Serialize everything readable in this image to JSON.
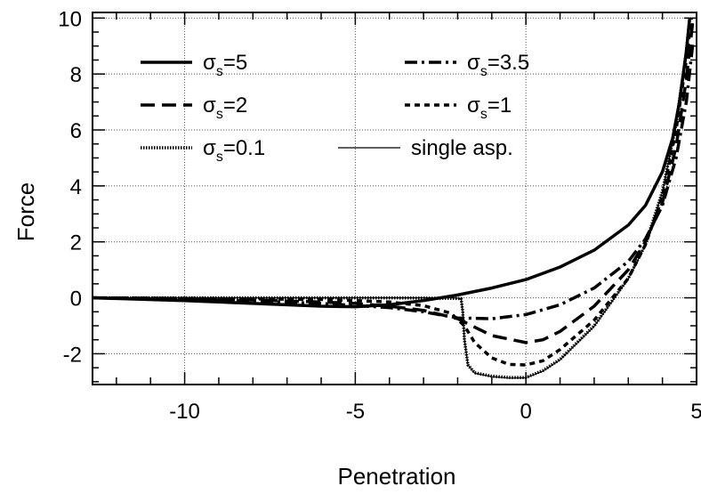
{
  "chart_data": {
    "type": "line",
    "xlabel": "Penetration",
    "ylabel": "Force",
    "xlim": [
      -12.7,
      5.0
    ],
    "ylim": [
      -3.1,
      10.2
    ],
    "grid": true,
    "legend_position": "top-left",
    "x_ticks": [
      -10,
      -5,
      0,
      5
    ],
    "x_tick_labels": [
      "-10",
      "-5",
      "0",
      "5"
    ],
    "y_ticks": [
      -2,
      0,
      2,
      4,
      6,
      8,
      10
    ],
    "y_tick_labels": [
      "-2",
      "0",
      "2",
      "4",
      "6",
      "8",
      "10"
    ],
    "series": [
      {
        "name": "σs=5",
        "symbol": "σ",
        "sub": "s",
        "value": "=5",
        "style": "solid-thick",
        "points": [
          [
            -12.7,
            0
          ],
          [
            -10,
            -0.1
          ],
          [
            -8,
            -0.2
          ],
          [
            -6,
            -0.3
          ],
          [
            -5,
            -0.32
          ],
          [
            -4,
            -0.25
          ],
          [
            -3,
            -0.1
          ],
          [
            -2,
            0.1
          ],
          [
            -1,
            0.35
          ],
          [
            0,
            0.65
          ],
          [
            1,
            1.1
          ],
          [
            2,
            1.7
          ],
          [
            3,
            2.6
          ],
          [
            3.5,
            3.3
          ],
          [
            4,
            4.5
          ],
          [
            4.3,
            5.7
          ],
          [
            4.5,
            7.0
          ],
          [
            4.7,
            8.8
          ],
          [
            4.8,
            10.0
          ]
        ]
      },
      {
        "name": "σs=3.5",
        "symbol": "σ",
        "sub": "s",
        "value": "=3.5",
        "style": "dashdot",
        "points": [
          [
            -12.7,
            0
          ],
          [
            -10,
            -0.05
          ],
          [
            -8,
            -0.12
          ],
          [
            -6,
            -0.2
          ],
          [
            -4,
            -0.35
          ],
          [
            -3,
            -0.5
          ],
          [
            -2,
            -0.72
          ],
          [
            -1,
            -0.75
          ],
          [
            0,
            -0.6
          ],
          [
            1,
            -0.25
          ],
          [
            2,
            0.35
          ],
          [
            3,
            1.3
          ],
          [
            3.5,
            2.1
          ],
          [
            4,
            3.3
          ],
          [
            4.4,
            5.0
          ],
          [
            4.7,
            7.0
          ],
          [
            4.9,
            9.2
          ]
        ]
      },
      {
        "name": "σs=2",
        "symbol": "σ",
        "sub": "s",
        "value": "=2",
        "style": "dashed-long",
        "points": [
          [
            -12.7,
            0
          ],
          [
            -10,
            -0.03
          ],
          [
            -8,
            -0.08
          ],
          [
            -6,
            -0.15
          ],
          [
            -5,
            -0.2
          ],
          [
            -4,
            -0.3
          ],
          [
            -3,
            -0.45
          ],
          [
            -2,
            -0.75
          ],
          [
            -1,
            -1.35
          ],
          [
            0,
            -1.6
          ],
          [
            0.5,
            -1.5
          ],
          [
            1,
            -1.2
          ],
          [
            2,
            -0.3
          ],
          [
            3,
            1.0
          ],
          [
            3.5,
            2.0
          ],
          [
            4,
            3.4
          ],
          [
            4.4,
            5.4
          ],
          [
            4.7,
            7.8
          ],
          [
            4.9,
            10.0
          ]
        ]
      },
      {
        "name": "σs=1",
        "symbol": "σ",
        "sub": "s",
        "value": "=1",
        "style": "dashed-short",
        "points": [
          [
            -12.7,
            0
          ],
          [
            -10,
            -0.02
          ],
          [
            -8,
            -0.04
          ],
          [
            -6,
            -0.06
          ],
          [
            -5,
            -0.1
          ],
          [
            -4,
            -0.15
          ],
          [
            -3,
            -0.28
          ],
          [
            -2.2,
            -0.55
          ],
          [
            -1.8,
            -1.0
          ],
          [
            -1.5,
            -1.6
          ],
          [
            -1,
            -2.15
          ],
          [
            -0.5,
            -2.38
          ],
          [
            0,
            -2.4
          ],
          [
            0.5,
            -2.25
          ],
          [
            1,
            -1.85
          ],
          [
            2,
            -0.8
          ],
          [
            3,
            0.7
          ],
          [
            3.5,
            1.9
          ],
          [
            4,
            3.6
          ],
          [
            4.4,
            6.0
          ],
          [
            4.7,
            8.5
          ],
          [
            4.85,
            10.0
          ]
        ]
      },
      {
        "name": "σs=0.1",
        "symbol": "σ",
        "sub": "s",
        "value": "=0.1",
        "style": "dotted",
        "points": [
          [
            -12.7,
            0
          ],
          [
            -10,
            0
          ],
          [
            -8,
            0
          ],
          [
            -6,
            0
          ],
          [
            -5,
            0
          ],
          [
            -4,
            0
          ],
          [
            -3,
            -0.01
          ],
          [
            -2.2,
            -0.02
          ],
          [
            -1.9,
            -0.03
          ],
          [
            -1.85,
            -0.5
          ],
          [
            -1.8,
            -1.5
          ],
          [
            -1.7,
            -2.4
          ],
          [
            -1.5,
            -2.68
          ],
          [
            -1,
            -2.8
          ],
          [
            -0.5,
            -2.85
          ],
          [
            0,
            -2.85
          ],
          [
            0.5,
            -2.6
          ],
          [
            1,
            -2.2
          ],
          [
            2,
            -1.0
          ],
          [
            3,
            0.7
          ],
          [
            3.5,
            1.9
          ],
          [
            4,
            3.8
          ],
          [
            4.4,
            6.2
          ],
          [
            4.7,
            8.8
          ],
          [
            4.8,
            10.0
          ]
        ]
      },
      {
        "name": "single  asp.",
        "style": "solid-thin",
        "points": [
          [
            -12.7,
            0
          ],
          [
            -10,
            0
          ],
          [
            -8,
            0
          ],
          [
            -6,
            0
          ],
          [
            -5,
            0
          ],
          [
            -4,
            0
          ],
          [
            -3,
            0
          ],
          [
            -2.2,
            0
          ],
          [
            -1.9,
            -0.02
          ],
          [
            -1.85,
            -0.5
          ],
          [
            -1.8,
            -1.5
          ],
          [
            -1.7,
            -2.4
          ],
          [
            -1.5,
            -2.7
          ],
          [
            -1,
            -2.82
          ],
          [
            -0.5,
            -2.87
          ],
          [
            0,
            -2.86
          ],
          [
            0.5,
            -2.62
          ],
          [
            1,
            -2.22
          ],
          [
            2,
            -1.02
          ],
          [
            3,
            0.68
          ],
          [
            3.5,
            1.88
          ],
          [
            4,
            3.78
          ],
          [
            4.4,
            6.18
          ],
          [
            4.7,
            8.78
          ],
          [
            4.8,
            10.0
          ]
        ]
      }
    ]
  }
}
